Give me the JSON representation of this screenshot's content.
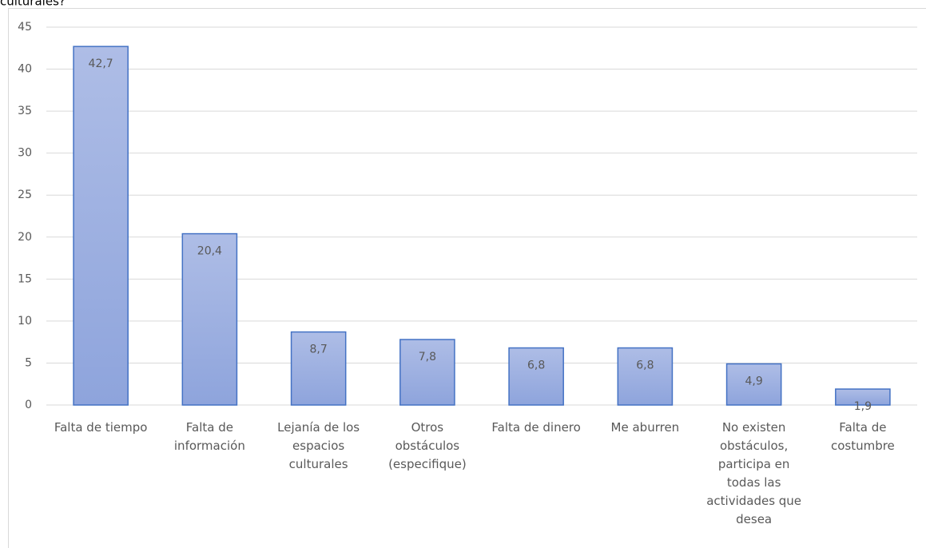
{
  "chart_data": {
    "type": "bar",
    "title": "culturales?",
    "categories": [
      "Falta de tiempo",
      "Falta de información",
      "Lejanía de los espacios culturales",
      "Otros obstáculos (especifique)",
      "Falta de dinero",
      "Me aburren",
      "No existen obstáculos, participa en todas las actividades que desea",
      "Falta de costumbre"
    ],
    "values": [
      42.7,
      20.4,
      8.7,
      7.8,
      6.8,
      6.8,
      4.9,
      1.9
    ],
    "value_labels": [
      "42,7",
      "20,4",
      "8,7",
      "7,8",
      "6,8",
      "6,8",
      "4,9",
      "1,9"
    ],
    "color": "#9cafe1",
    "edgecolor": "#4472c4",
    "ylim": [
      0,
      45
    ],
    "yticks": [
      0,
      5,
      10,
      15,
      20,
      25,
      30,
      35,
      40,
      45
    ],
    "grid": true
  }
}
